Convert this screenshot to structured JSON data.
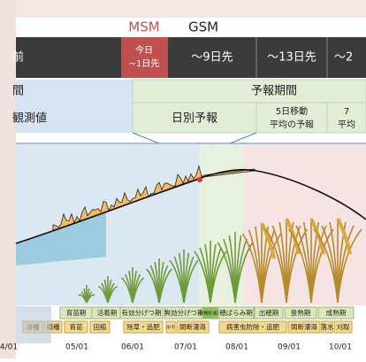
{
  "models": [
    "MSM",
    "GSM"
  ],
  "lead_row": {
    "past": "前",
    "today": [
      "今日",
      "~1日先"
    ],
    "cols": [
      "～9日先",
      "～13日先",
      "～2"
    ]
  },
  "period_row": {
    "observed": "間",
    "forecast": "予報期間"
  },
  "kind_row": {
    "observed": "観測値",
    "daily": "日別予報",
    "avg5": [
      "5日移動",
      "平均の予報"
    ],
    "avg7": [
      "7",
      "平均"
    ]
  },
  "stages": [
    "育苗期",
    "活着期",
    "有効分げつ期",
    "無効分げつ期",
    "幼穂形成期",
    "穂ばらみ期",
    "出穂期",
    "登熟期",
    "成熟期"
  ],
  "tasks": [
    "浸種",
    "播種",
    "育苗",
    "田植",
    "除草・追肥",
    "中干",
    "間断灌漑",
    "病害虫防除・追肥",
    "間断灌漑",
    "落水",
    "刈取"
  ],
  "dates": [
    "4/01",
    "05/01",
    "06/01",
    "07/01",
    "08/01",
    "09/01",
    "10/01"
  ]
}
